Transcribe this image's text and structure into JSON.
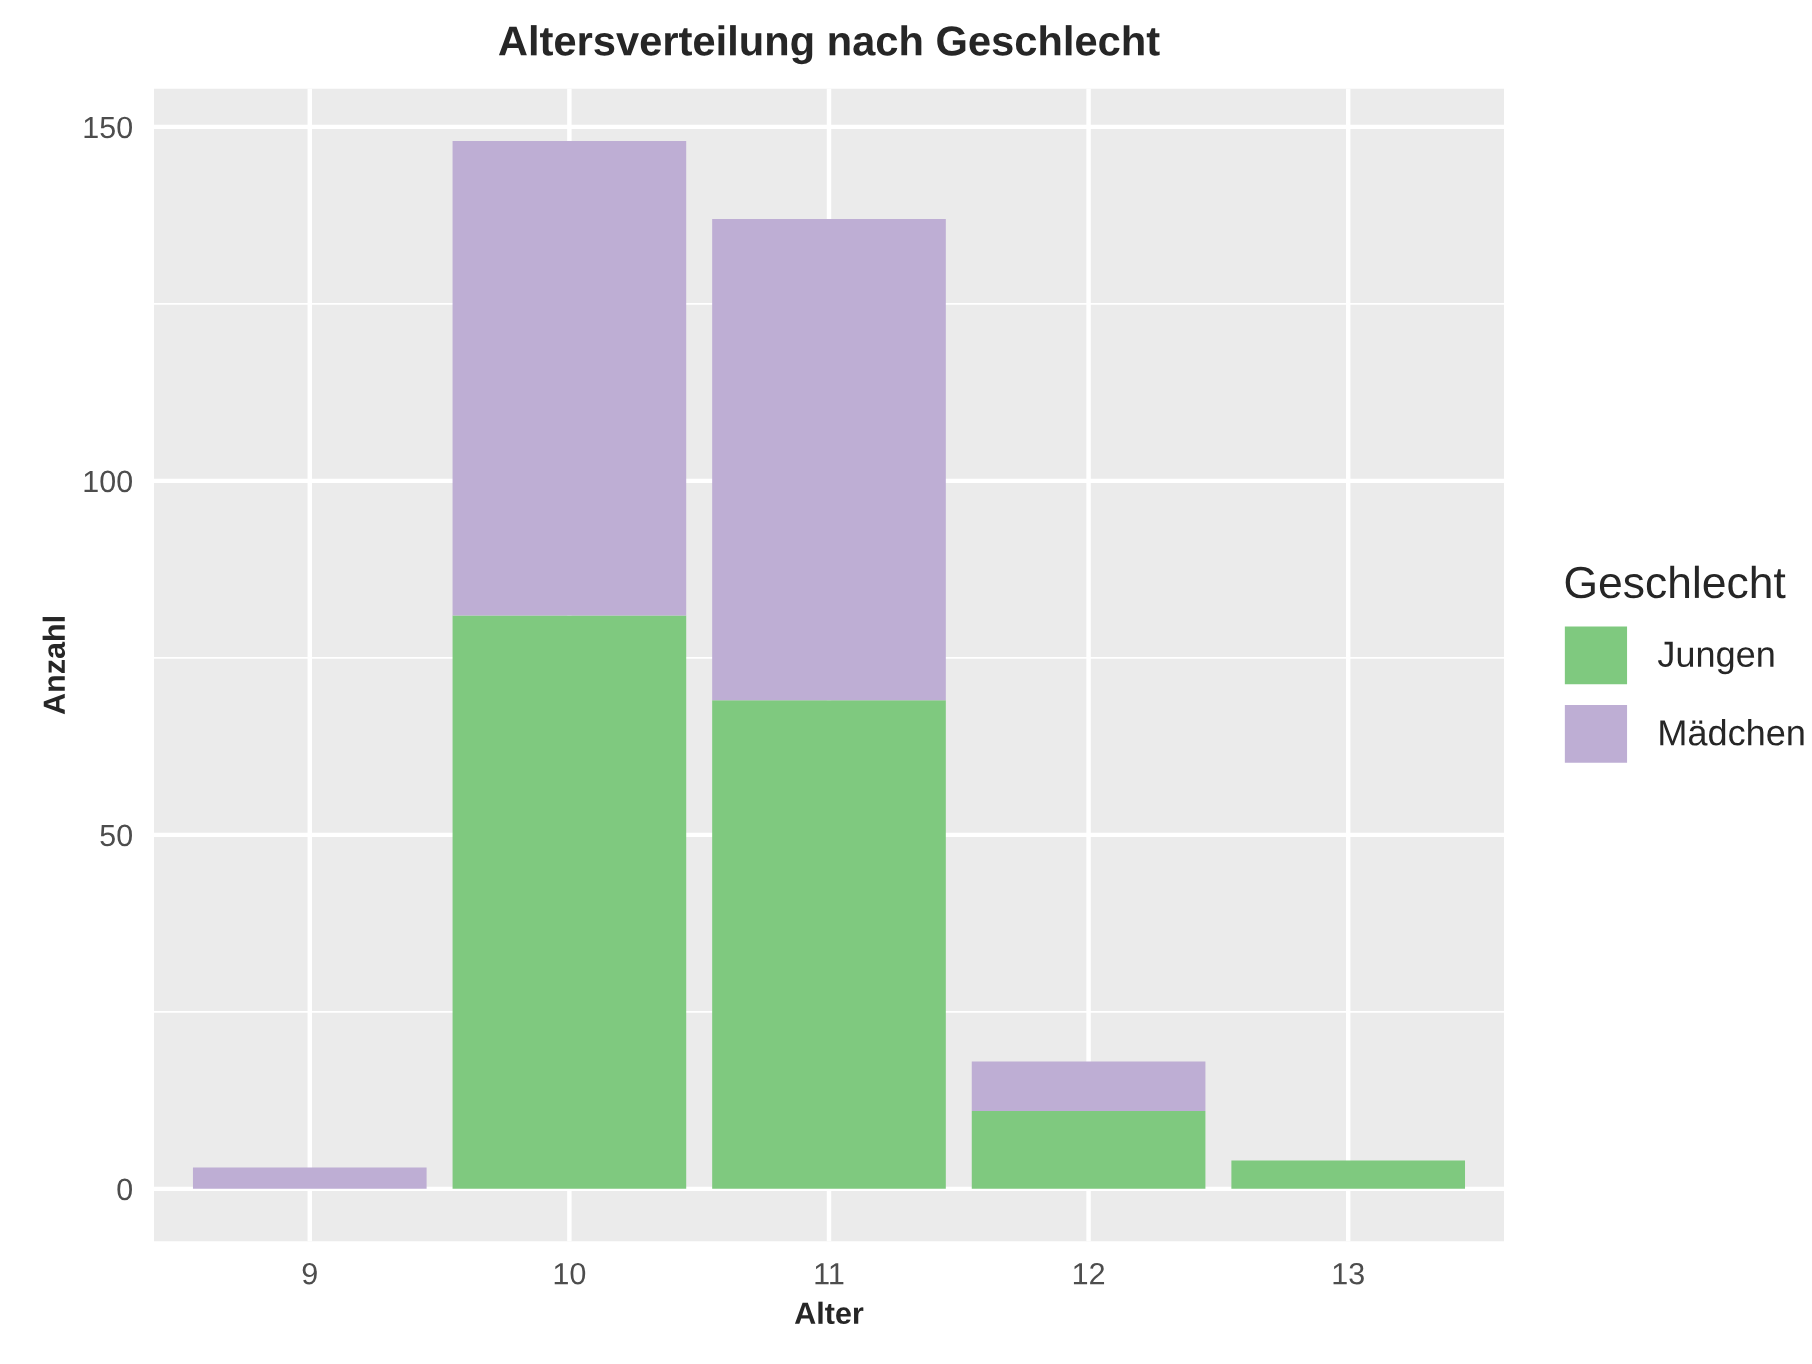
{
  "chart_data": {
    "type": "bar",
    "title": "Altersverteilung nach Geschlecht",
    "xlabel": "Alter",
    "ylabel": "Anzahl",
    "legend_title": "Geschlecht",
    "categories": [
      "9",
      "10",
      "11",
      "12",
      "13"
    ],
    "series": [
      {
        "name": "Jungen",
        "color": "#7fc97f",
        "values": [
          0,
          81,
          69,
          11,
          4
        ]
      },
      {
        "name": "Mädchen",
        "color": "#beaed4",
        "values": [
          3,
          67,
          68,
          7,
          0
        ]
      }
    ],
    "stacked": true,
    "ylim": [
      -7.4,
      155.4
    ],
    "yticks": [
      0,
      50,
      100,
      150
    ],
    "grid": true,
    "legend": "right"
  }
}
